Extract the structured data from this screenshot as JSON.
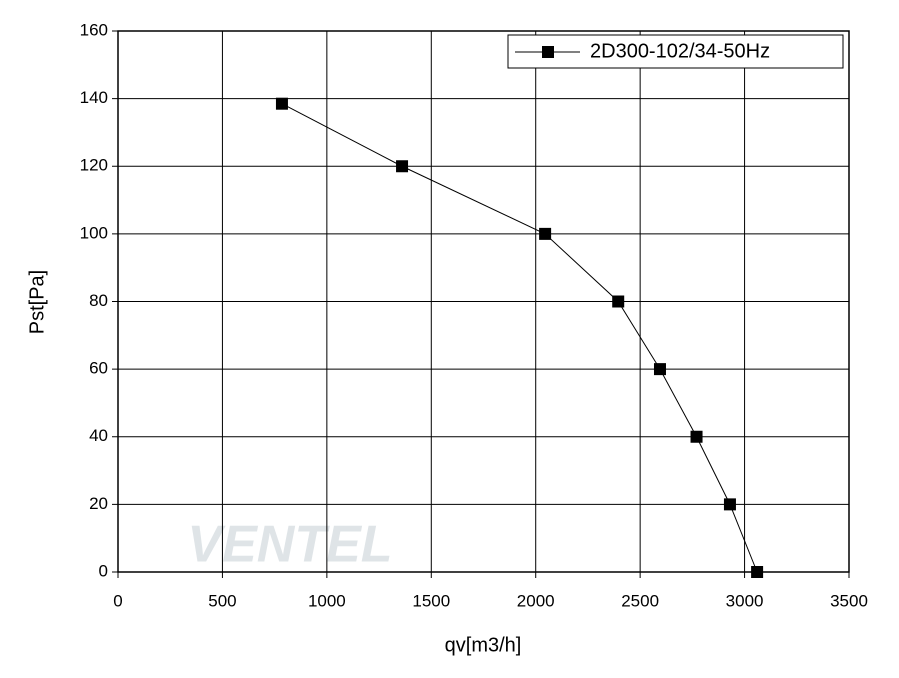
{
  "chart_data": {
    "type": "line",
    "x_label": "qv[m3/h]",
    "y_label": "Pst[Pa]",
    "watermark": "VENTEL",
    "series": [
      {
        "name": "2D300-102/34-50Hz",
        "color": "#000000",
        "x": [
          785,
          1360,
          2045,
          2395,
          2595,
          2770,
          2930,
          3060
        ],
        "values": [
          138.5,
          120,
          100,
          80,
          60,
          40,
          20,
          0
        ]
      }
    ],
    "xlim": [
      0,
      3500
    ],
    "xticks": [
      0,
      500,
      1000,
      1500,
      2000,
      2500,
      3000,
      3500
    ],
    "ylim": [
      0,
      160
    ],
    "yticks": [
      0,
      20,
      40,
      60,
      80,
      100,
      120,
      140,
      160
    ],
    "grid": true,
    "legend": "top-right"
  }
}
